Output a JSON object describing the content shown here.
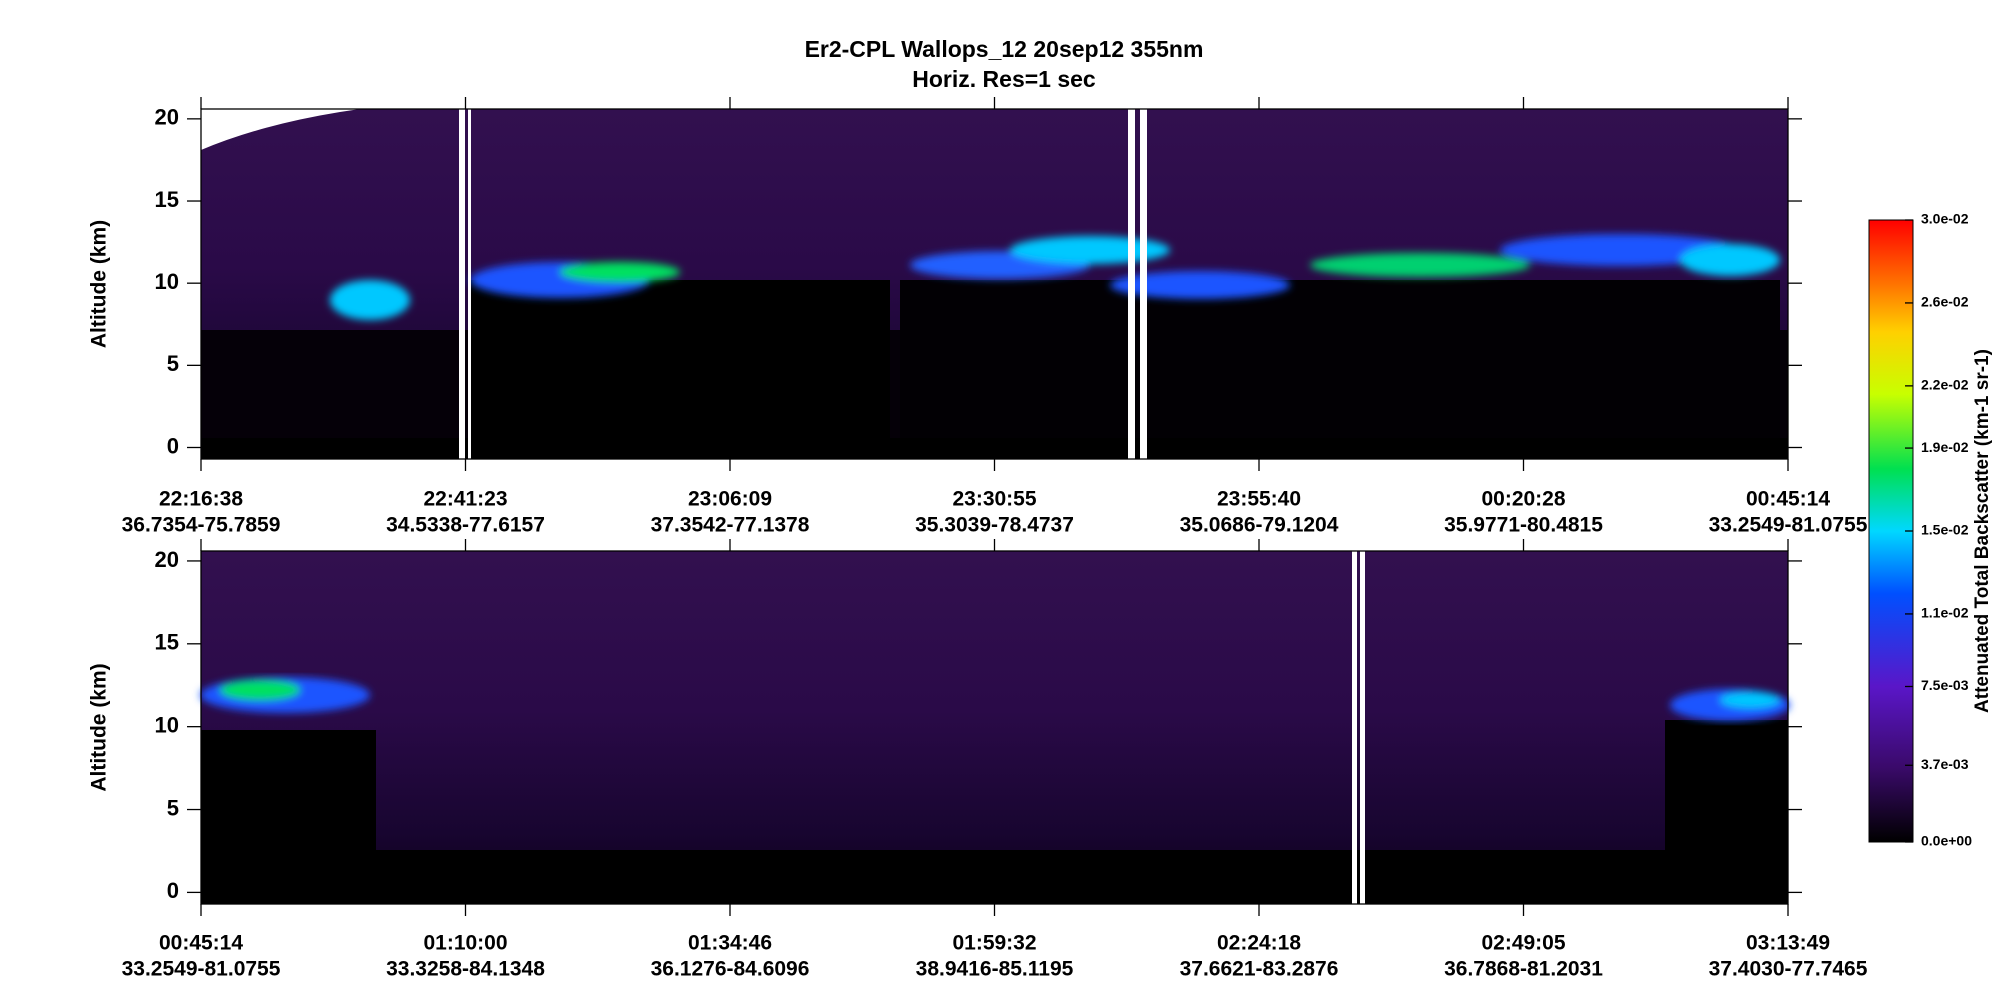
{
  "chart_data": {
    "type": "heatmap",
    "title": "Er2-CPL  Wallops_12  20sep12  355nm",
    "subtitle": "Horiz. Res=1 sec",
    "y_label": "Altitude (km)",
    "ylim": [
      -0.7,
      20.6
    ],
    "yticks": [
      0,
      5,
      10,
      15,
      20
    ],
    "panels": [
      {
        "x_ticks": [
          {
            "time": "22:16:38",
            "location": "36.7354-75.7859"
          },
          {
            "time": "22:41:23",
            "location": "34.5338-77.6157"
          },
          {
            "time": "23:06:09",
            "location": "37.3542-77.1378"
          },
          {
            "time": "23:30:55",
            "location": "35.3039-78.4737"
          },
          {
            "time": "23:55:40",
            "location": "35.0686-79.1204"
          },
          {
            "time": "00:20:28",
            "location": "35.9771-80.4815"
          },
          {
            "time": "00:45:14",
            "location": "33.2549-81.0755"
          }
        ]
      },
      {
        "x_ticks": [
          {
            "time": "00:45:14",
            "location": "33.2549-81.0755"
          },
          {
            "time": "01:10:00",
            "location": "33.3258-84.1348"
          },
          {
            "time": "01:34:46",
            "location": "36.1276-84.6096"
          },
          {
            "time": "01:59:32",
            "location": "38.9416-85.1195"
          },
          {
            "time": "02:24:18",
            "location": "37.6621-83.2876"
          },
          {
            "time": "02:49:05",
            "location": "36.7868-81.2031"
          },
          {
            "time": "03:13:49",
            "location": "37.4030-77.7465"
          }
        ]
      }
    ],
    "colorbar": {
      "label": "Attenuated Total Backscatter (km-1 sr-1)",
      "lim": [
        0,
        0.03
      ],
      "ticks": [
        {
          "value": 0,
          "label": "0.0e+00"
        },
        {
          "value": 0.0037,
          "label": "3.7e-03"
        },
        {
          "value": 0.0075,
          "label": "7.5e-03"
        },
        {
          "value": 0.011,
          "label": "1.1e-02"
        },
        {
          "value": 0.015,
          "label": "1.5e-02"
        },
        {
          "value": 0.019,
          "label": "1.9e-02"
        },
        {
          "value": 0.022,
          "label": "2.2e-02"
        },
        {
          "value": 0.026,
          "label": "2.6e-02"
        },
        {
          "value": 0.03,
          "label": "3.0e-02"
        }
      ]
    }
  }
}
